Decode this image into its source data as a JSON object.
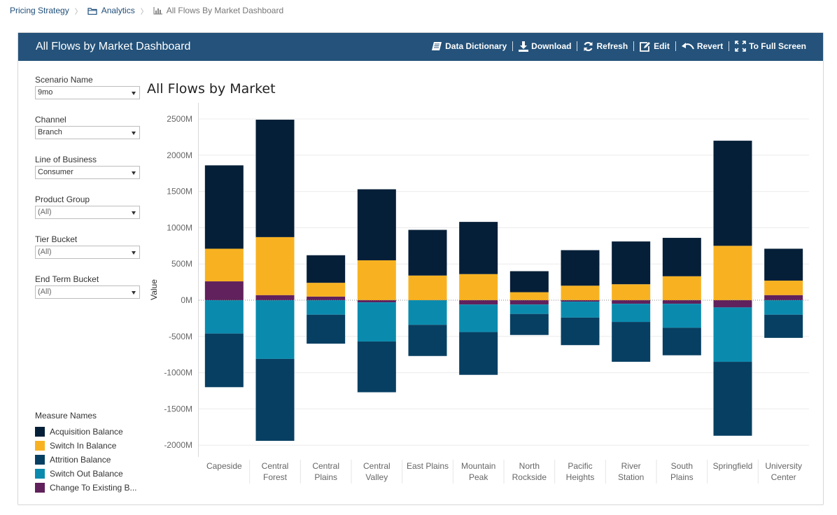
{
  "breadcrumb": {
    "items": [
      "Pricing Strategy",
      "Analytics",
      "All Flows By Market Dashboard"
    ]
  },
  "panel": {
    "title": "All Flows by Market Dashboard",
    "header_color": "#24527a"
  },
  "toolbar": {
    "data_dictionary": "Data Dictionary",
    "download": "Download",
    "refresh": "Refresh",
    "edit": "Edit",
    "revert": "Revert",
    "full_screen": "To Full Screen"
  },
  "filters": [
    {
      "label": "Scenario Name",
      "value": "9mo"
    },
    {
      "label": "Channel",
      "value": "Branch"
    },
    {
      "label": "Line of Business",
      "value": "Consumer"
    },
    {
      "label": "Product Group",
      "value": "(All)"
    },
    {
      "label": "Tier Bucket",
      "value": "(All)"
    },
    {
      "label": "End Term Bucket",
      "value": "(All)"
    }
  ],
  "legend": {
    "title": "Measure Names",
    "items": [
      {
        "label": "Acquisition Balance",
        "color": "#061f38"
      },
      {
        "label": "Switch In Balance",
        "color": "#f8b221"
      },
      {
        "label": "Attrition Balance",
        "color": "#073f62"
      },
      {
        "label": "Switch Out Balance",
        "color": "#0a8bae"
      },
      {
        "label": "Change To Existing B...",
        "color": "#60215c"
      }
    ]
  },
  "chart_data": {
    "type": "bar",
    "stacked": true,
    "title": "All Flows by Market",
    "ylabel": "Value",
    "xlabel": "",
    "ylim": [
      -2100,
      2550
    ],
    "yticks": [
      2500,
      2000,
      1500,
      1000,
      500,
      0,
      -500,
      -1000,
      -1500,
      -2000
    ],
    "ytick_labels": [
      "2500M",
      "2000M",
      "1500M",
      "1000M",
      "500M",
      "0M",
      "-500M",
      "-1000M",
      "-1500M",
      "-2000M"
    ],
    "grid": true,
    "categories": [
      [
        "Capeside"
      ],
      [
        "Central",
        "Forest"
      ],
      [
        "Central",
        "Plains"
      ],
      [
        "Central",
        "Valley"
      ],
      [
        "East Plains"
      ],
      [
        "Mountain",
        "Peak"
      ],
      [
        "North",
        "Rockside"
      ],
      [
        "Pacific",
        "Heights"
      ],
      [
        "River",
        "Station"
      ],
      [
        "South",
        "Plains"
      ],
      [
        "Springfield"
      ],
      [
        "University",
        "Center"
      ]
    ],
    "series": [
      {
        "name": "Change To Existing B...",
        "color": "#60215c",
        "values": [
          260,
          70,
          50,
          -30,
          0,
          -60,
          -60,
          -20,
          -50,
          -50,
          -100,
          70
        ]
      },
      {
        "name": "Switch In Balance",
        "color": "#f8b221",
        "values": [
          450,
          800,
          190,
          550,
          340,
          360,
          110,
          200,
          220,
          330,
          750,
          200
        ]
      },
      {
        "name": "Acquisition Balance",
        "color": "#061f38",
        "values": [
          1150,
          1620,
          380,
          980,
          630,
          720,
          290,
          490,
          590,
          530,
          1450,
          440
        ]
      },
      {
        "name": "Switch Out Balance",
        "color": "#0a8bae",
        "values": [
          -460,
          -810,
          -200,
          -540,
          -340,
          -380,
          -130,
          -220,
          -250,
          -330,
          -750,
          -200
        ]
      },
      {
        "name": "Attrition Balance",
        "color": "#073f62",
        "values": [
          -740,
          -1130,
          -400,
          -700,
          -430,
          -590,
          -290,
          -380,
          -550,
          -380,
          -1020,
          -320
        ]
      }
    ]
  }
}
